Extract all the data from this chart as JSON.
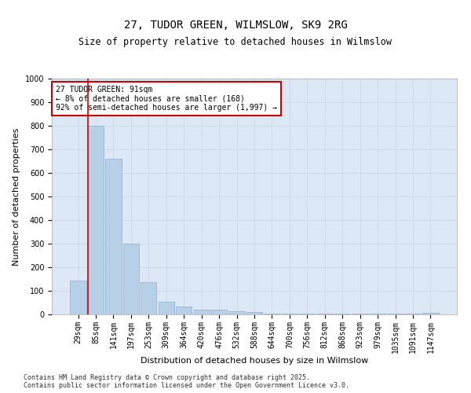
{
  "title_line1": "27, TUDOR GREEN, WILMSLOW, SK9 2RG",
  "title_line2": "Size of property relative to detached houses in Wilmslow",
  "xlabel": "Distribution of detached houses by size in Wilmslow",
  "ylabel": "Number of detached properties",
  "categories": [
    "29sqm",
    "85sqm",
    "141sqm",
    "197sqm",
    "253sqm",
    "309sqm",
    "364sqm",
    "420sqm",
    "476sqm",
    "532sqm",
    "588sqm",
    "644sqm",
    "700sqm",
    "756sqm",
    "812sqm",
    "868sqm",
    "923sqm",
    "979sqm",
    "1035sqm",
    "1091sqm",
    "1147sqm"
  ],
  "values": [
    145,
    800,
    660,
    300,
    137,
    55,
    32,
    20,
    20,
    15,
    10,
    5,
    3,
    3,
    3,
    3,
    3,
    3,
    3,
    3,
    8
  ],
  "bar_color": "#b8cfe8",
  "bar_edge_color": "#8aafd0",
  "vline_color": "#cc0000",
  "annotation_text": "27 TUDOR GREEN: 91sqm\n← 8% of detached houses are smaller (168)\n92% of semi-detached houses are larger (1,997) →",
  "box_color": "#cc0000",
  "ylim": [
    0,
    1000
  ],
  "yticks": [
    0,
    100,
    200,
    300,
    400,
    500,
    600,
    700,
    800,
    900,
    1000
  ],
  "grid_color": "#c8d4e8",
  "background_color": "#dce8f5",
  "footer_text": "Contains HM Land Registry data © Crown copyright and database right 2025.\nContains public sector information licensed under the Open Government Licence v3.0.",
  "title_fontsize": 10,
  "subtitle_fontsize": 8.5,
  "axis_label_fontsize": 8,
  "tick_fontsize": 7,
  "annotation_fontsize": 7,
  "footer_fontsize": 6
}
